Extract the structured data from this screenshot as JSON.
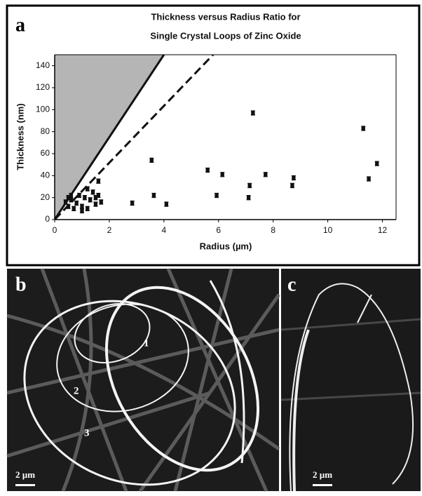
{
  "chart_data": {
    "type": "scatter",
    "panel_label": "a",
    "title": [
      "Thickness versus Radius Ratio for",
      "Single Crystal Loops of Zinc Oxide"
    ],
    "x_label": "Radius (µm)",
    "y_label": "Thickness (nm)",
    "xlim": [
      0,
      12.5
    ],
    "ylim": [
      0,
      150
    ],
    "xticks": [
      0,
      2,
      4,
      6,
      8,
      10,
      12
    ],
    "yticks": [
      0,
      20,
      40,
      60,
      80,
      100,
      120,
      140
    ],
    "color": "#111111",
    "shade_color": "#b5b5b5",
    "reference_lines": [
      {
        "style": "solid",
        "x": [
          0,
          4
        ],
        "y": [
          0,
          150
        ]
      },
      {
        "style": "dashed",
        "x": [
          0,
          5.8
        ],
        "y": [
          0,
          150
        ]
      }
    ],
    "x": [
      3.55,
      7.26,
      11.3,
      5.6,
      6.14,
      7.72,
      11.8,
      8.75,
      8.7,
      7.14,
      5.93,
      3.63,
      2.84,
      4.09,
      7.1,
      11.5,
      0.5,
      0.6,
      0.5,
      0.7,
      0.8,
      0.9,
      1.0,
      1.1,
      1.2,
      1.3,
      1.4,
      1.5,
      1.6,
      1.6,
      1.7,
      1.2,
      0.6,
      0.4,
      1.0,
      1.5
    ],
    "y": [
      54,
      97,
      83,
      45,
      41,
      41,
      51,
      38,
      31,
      31,
      22,
      22,
      15,
      14,
      20,
      37,
      20,
      18,
      12,
      10,
      15,
      22,
      12,
      20,
      28,
      18,
      25,
      14,
      35,
      22,
      16,
      10,
      22,
      16,
      8,
      20
    ]
  },
  "panels": {
    "b": {
      "label": "b",
      "annotations": [
        "1",
        "2",
        "3"
      ],
      "scale_bar": "2 µm"
    },
    "c": {
      "label": "c",
      "scale_bar": "2 µm"
    }
  }
}
